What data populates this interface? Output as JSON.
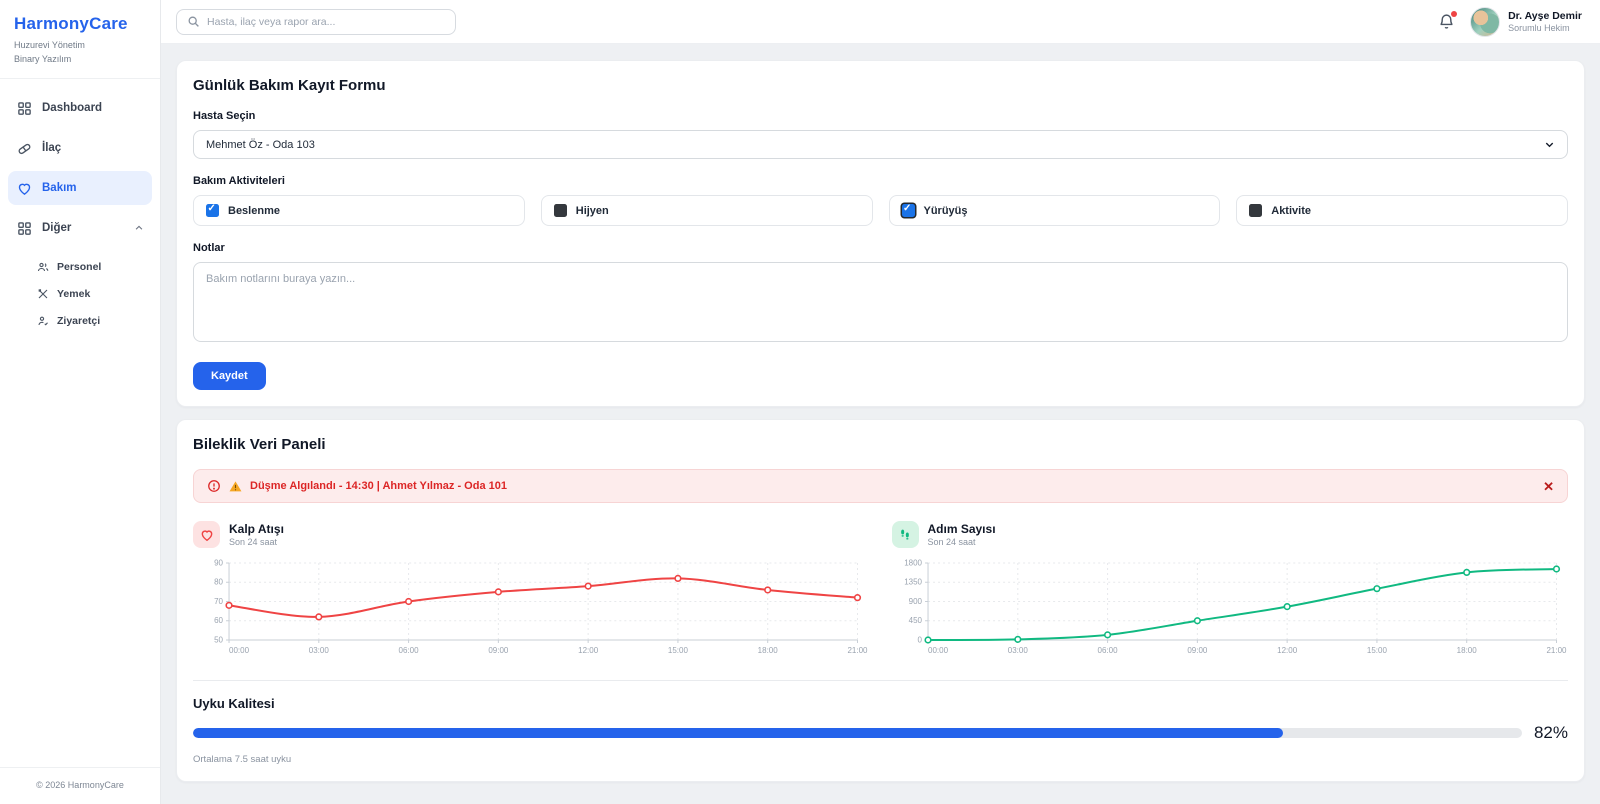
{
  "sidebar": {
    "logo": "HarmonyCare",
    "subtitle1": "Huzurevi Yönetim",
    "subtitle2": "Binary Yazılım",
    "items": [
      {
        "label": "Dashboard",
        "icon": "grid-icon"
      },
      {
        "label": "İlaç",
        "icon": "pill-icon"
      },
      {
        "label": "Bakım",
        "icon": "heart-icon",
        "active": true
      },
      {
        "label": "Diğer",
        "icon": "grid-icon",
        "expanded": true
      }
    ],
    "subitems": [
      {
        "label": "Personel",
        "icon": "people-icon"
      },
      {
        "label": "Yemek",
        "icon": "utensils-icon"
      },
      {
        "label": "Ziyaretçi",
        "icon": "visitor-icon"
      }
    ],
    "footer": "© 2026 HarmonyCare"
  },
  "topbar": {
    "search_placeholder": "Hasta, ilaç veya rapor ara...",
    "user_name": "Dr. Ayşe Demir",
    "user_role": "Sorumlu Hekim"
  },
  "care_form": {
    "title": "Günlük Bakım Kayıt Formu",
    "patient_label": "Hasta Seçin",
    "patient_selected": "Mehmet Öz - Oda 103",
    "activities_label": "Bakım Aktiviteleri",
    "activities": [
      {
        "label": "Beslenme",
        "checked": true,
        "focused": false
      },
      {
        "label": "Hijyen",
        "checked": false,
        "focused": false
      },
      {
        "label": "Yürüyüş",
        "checked": true,
        "focused": true
      },
      {
        "label": "Aktivite",
        "checked": false,
        "focused": false
      }
    ],
    "notes_label": "Notlar",
    "notes_placeholder": "Bakım notlarını buraya yazın...",
    "save_label": "Kaydet"
  },
  "panel": {
    "title": "Bileklik Veri Paneli",
    "alert_text": "Düşme Algılandı - 14:30 | Ahmet Yılmaz - Oda 101",
    "sleep": {
      "title": "Uyku Kalitesi",
      "percent": 82,
      "percent_label": "82%",
      "note": "Ortalama 7.5 saat uyku"
    }
  },
  "chart_data": [
    {
      "type": "line",
      "title": "Kalp Atışı",
      "subtitle": "Son 24 saat",
      "x": [
        "00:00",
        "03:00",
        "06:00",
        "09:00",
        "12:00",
        "15:00",
        "18:00",
        "21:00"
      ],
      "values": [
        68,
        62,
        70,
        75,
        78,
        82,
        76,
        72
      ],
      "ylim": [
        50,
        90
      ],
      "yticks": [
        50,
        60,
        70,
        80,
        90
      ],
      "color": "#ef4444",
      "grid": true,
      "legend": "none",
      "icon": "heart-icon"
    },
    {
      "type": "line",
      "title": "Adım Sayısı",
      "subtitle": "Son 24 saat",
      "x": [
        "00:00",
        "03:00",
        "06:00",
        "09:00",
        "12:00",
        "15:00",
        "18:00",
        "21:00"
      ],
      "values": [
        0,
        15,
        120,
        450,
        780,
        1200,
        1580,
        1660
      ],
      "ylim": [
        0,
        1800
      ],
      "yticks": [
        0,
        450,
        900,
        1350,
        1800
      ],
      "color": "#10b981",
      "grid": true,
      "legend": "none",
      "icon": "footsteps-icon"
    }
  ],
  "colors": {
    "accent_blue": "#2563eb",
    "alert_red": "#dc2626",
    "heart_red": "#ef4444",
    "steps_green": "#10b981"
  }
}
